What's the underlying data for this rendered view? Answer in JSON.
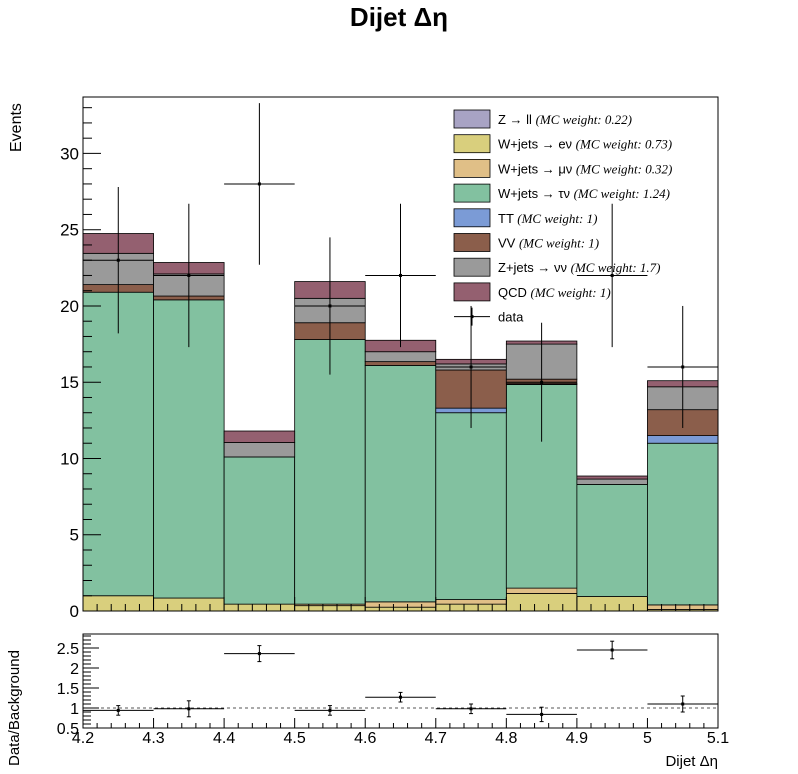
{
  "title": "Dijet  Δη",
  "chart_data": [
    {
      "type": "bar",
      "stacked": true,
      "histogram": true,
      "bin_edges": [
        4.2,
        4.3,
        4.4,
        4.5,
        4.6,
        4.7,
        4.8,
        4.9,
        5.0,
        5.1
      ],
      "bin_centers": [
        4.25,
        4.35,
        4.45,
        4.55,
        4.65,
        4.75,
        4.85,
        4.95,
        5.05
      ],
      "ylabel": "Events",
      "ylim": [
        0,
        33.7
      ],
      "yticks": [
        "0",
        "5",
        "10",
        "15",
        "20",
        "25",
        "30"
      ],
      "legend_position": "top-right",
      "series": [
        {
          "label_main": "Z → ll",
          "label_weight": "(MC weight: 0.22)",
          "color": "#a8a3c4",
          "values": [
            0,
            0,
            0,
            0,
            0,
            0,
            0,
            0,
            0
          ]
        },
        {
          "label_main": "W+jets → eν",
          "label_weight": "(MC weight: 0.73)",
          "color": "#d9cf7d",
          "values": [
            1.0,
            0.85,
            0.45,
            0.35,
            0.25,
            0.45,
            1.15,
            0.95,
            0.1
          ]
        },
        {
          "label_main": "W+jets → μν",
          "label_weight": "(MC weight: 0.32)",
          "color": "#e0bf87",
          "values": [
            0,
            0,
            0,
            0.1,
            0.35,
            0.3,
            0.35,
            0,
            0.3
          ]
        },
        {
          "label_main": "W+jets → τν",
          "label_weight": "(MC weight: 1.24)",
          "color": "#82c1a0",
          "values": [
            19.9,
            19.55,
            9.65,
            17.35,
            15.5,
            12.25,
            13.35,
            7.35,
            10.6
          ]
        },
        {
          "label_main": "TT",
          "label_weight": "(MC weight: 1)",
          "color": "#7b9bd6",
          "values": [
            0,
            0,
            0,
            0,
            0,
            0.3,
            0.05,
            0,
            0.5
          ]
        },
        {
          "label_main": "VV",
          "label_weight": "(MC weight: 1)",
          "color": "#8b5e4b",
          "values": [
            0.5,
            0.25,
            0,
            1.1,
            0.25,
            2.5,
            0.3,
            0,
            1.7
          ]
        },
        {
          "label_main": "Z+jets → νν",
          "label_weight": "(MC weight: 1.7)",
          "color": "#9a9a9a",
          "values": [
            2.05,
            1.45,
            0.95,
            1.6,
            0.65,
            0.4,
            2.3,
            0.35,
            1.5
          ]
        },
        {
          "label_main": "QCD",
          "label_weight": "(MC weight: 1)",
          "color": "#946070",
          "values": [
            1.3,
            0.75,
            0.75,
            1.1,
            0.75,
            0.3,
            0.2,
            0.2,
            0.4
          ]
        }
      ],
      "data_label": "data",
      "data": {
        "x": [
          4.25,
          4.35,
          4.45,
          4.55,
          4.65,
          4.75,
          4.85,
          4.95,
          5.05
        ],
        "y": [
          23,
          22,
          28,
          20,
          22,
          16,
          15,
          22,
          16
        ],
        "err": [
          4.8,
          4.7,
          5.3,
          4.5,
          4.7,
          4.0,
          3.9,
          4.7,
          4.0
        ]
      }
    },
    {
      "type": "scatter",
      "xlabel": "Dijet Δη",
      "ylabel": "Data/Background",
      "xlim": [
        4.2,
        5.1
      ],
      "ylim": [
        0.5,
        2.85
      ],
      "xticks": [
        "4.2",
        "4.3",
        "4.4",
        "4.5",
        "4.6",
        "4.7",
        "4.8",
        "4.9",
        "5",
        "5.1"
      ],
      "yticks": [
        "0.5",
        "1",
        "1.5",
        "2",
        "2.5"
      ],
      "reference_line": 1,
      "x": [
        4.25,
        4.35,
        4.45,
        4.55,
        4.65,
        4.75,
        4.85,
        4.95,
        5.05
      ],
      "y": [
        0.94,
        0.98,
        2.36,
        0.94,
        1.27,
        0.98,
        0.84,
        2.45,
        1.1
      ],
      "err": [
        0.12,
        0.2,
        0.2,
        0.12,
        0.12,
        0.12,
        0.18,
        0.22,
        0.2
      ]
    }
  ]
}
